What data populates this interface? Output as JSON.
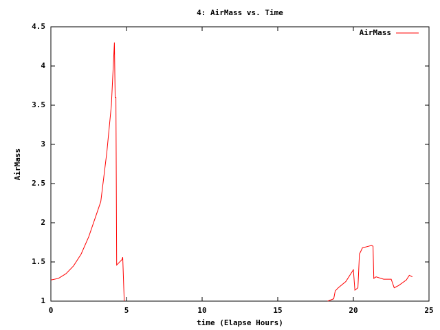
{
  "chart_data": {
    "type": "line",
    "title": "4: AirMass vs. Time",
    "x_label": "time (Elapse Hours)",
    "y_label": "AirMass",
    "x": [
      0,
      0.5,
      1,
      1.5,
      2,
      2.5,
      3,
      3.3,
      3.7,
      4,
      4.2,
      4.25,
      4.3,
      4.35,
      4.7,
      4.75,
      4.85,
      null,
      18.3,
      18.7,
      18.8,
      19,
      19.5,
      20,
      20.1,
      20.3,
      20.4,
      20.6,
      21,
      21.2,
      21.3,
      21.35,
      21.5,
      22,
      22.5,
      22.7,
      23,
      23.5,
      23.7,
      23.9
    ],
    "series": [
      {
        "name": "AirMass",
        "color": "#ff0000",
        "values": [
          1.27,
          1.29,
          1.35,
          1.45,
          1.6,
          1.82,
          2.1,
          2.27,
          2.9,
          3.5,
          4.3,
          3.6,
          3.6,
          1.46,
          1.53,
          1.56,
          1.0,
          null,
          1.0,
          1.03,
          1.13,
          1.17,
          1.25,
          1.4,
          1.14,
          1.17,
          1.6,
          1.68,
          1.7,
          1.71,
          1.7,
          1.29,
          1.31,
          1.28,
          1.28,
          1.17,
          1.2,
          1.27,
          1.33,
          1.31
        ]
      }
    ],
    "xlim": [
      0,
      25
    ],
    "xticks": [
      0,
      5,
      10,
      15,
      20,
      25
    ],
    "ylim": [
      1,
      4.5
    ],
    "yticks": [
      1,
      1.5,
      2,
      2.5,
      3,
      3.5,
      4,
      4.5
    ],
    "grid": false,
    "legend": "top-right"
  }
}
